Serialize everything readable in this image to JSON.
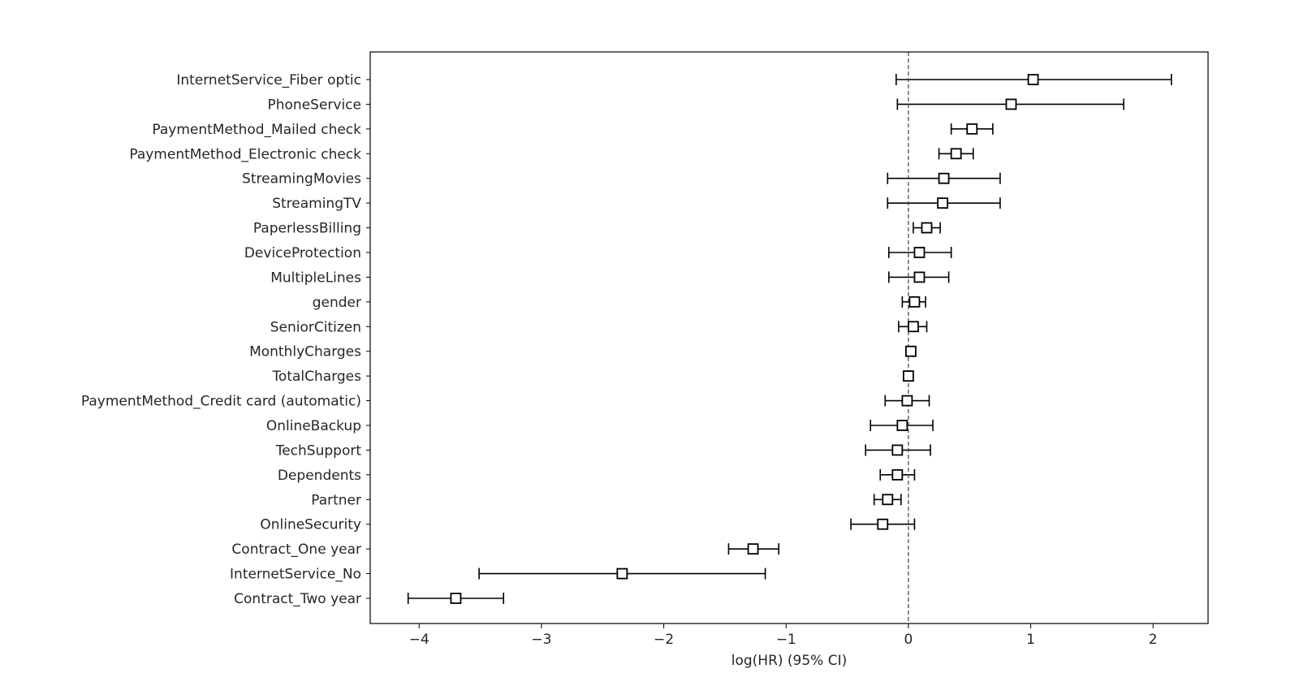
{
  "chart_data": {
    "type": "scatter",
    "title": "",
    "xlabel": "log(HR) (95% CI)",
    "ylabel": "",
    "xlim": [
      -4.4,
      2.45
    ],
    "xticks": [
      -4,
      -3,
      -2,
      -1,
      0,
      1,
      2
    ],
    "xtick_labels": [
      "−4",
      "−3",
      "−2",
      "−1",
      "0",
      "1",
      "2"
    ],
    "reference_line": 0,
    "grid": false,
    "covariates": [
      {
        "label": "InternetService_Fiber optic",
        "coef": 1.02,
        "lower": -0.1,
        "upper": 2.15
      },
      {
        "label": "PhoneService",
        "coef": 0.84,
        "lower": -0.09,
        "upper": 1.76
      },
      {
        "label": "PaymentMethod_Mailed check",
        "coef": 0.52,
        "lower": 0.35,
        "upper": 0.69
      },
      {
        "label": "PaymentMethod_Electronic check",
        "coef": 0.39,
        "lower": 0.25,
        "upper": 0.53
      },
      {
        "label": "StreamingMovies",
        "coef": 0.29,
        "lower": -0.17,
        "upper": 0.75
      },
      {
        "label": "StreamingTV",
        "coef": 0.28,
        "lower": -0.17,
        "upper": 0.75
      },
      {
        "label": "PaperlessBilling",
        "coef": 0.15,
        "lower": 0.04,
        "upper": 0.26
      },
      {
        "label": "DeviceProtection",
        "coef": 0.09,
        "lower": -0.16,
        "upper": 0.35
      },
      {
        "label": "MultipleLines",
        "coef": 0.09,
        "lower": -0.16,
        "upper": 0.33
      },
      {
        "label": "gender",
        "coef": 0.05,
        "lower": -0.05,
        "upper": 0.14
      },
      {
        "label": "SeniorCitizen",
        "coef": 0.04,
        "lower": -0.08,
        "upper": 0.15
      },
      {
        "label": "MonthlyCharges",
        "coef": 0.02,
        "lower": -0.01,
        "upper": 0.04
      },
      {
        "label": "TotalCharges",
        "coef": 0.0,
        "lower": -0.01,
        "upper": 0.01
      },
      {
        "label": "PaymentMethod_Credit card (automatic)",
        "coef": -0.01,
        "lower": -0.19,
        "upper": 0.17
      },
      {
        "label": "OnlineBackup",
        "coef": -0.05,
        "lower": -0.31,
        "upper": 0.2
      },
      {
        "label": "TechSupport",
        "coef": -0.09,
        "lower": -0.35,
        "upper": 0.18
      },
      {
        "label": "Dependents",
        "coef": -0.09,
        "lower": -0.23,
        "upper": 0.05
      },
      {
        "label": "Partner",
        "coef": -0.17,
        "lower": -0.28,
        "upper": -0.06
      },
      {
        "label": "OnlineSecurity",
        "coef": -0.21,
        "lower": -0.47,
        "upper": 0.05
      },
      {
        "label": "Contract_One year",
        "coef": -1.27,
        "lower": -1.47,
        "upper": -1.06
      },
      {
        "label": "InternetService_No",
        "coef": -2.34,
        "lower": -3.51,
        "upper": -1.17
      },
      {
        "label": "Contract_Two year",
        "coef": -3.7,
        "lower": -4.09,
        "upper": -3.31
      }
    ]
  },
  "colors": {
    "axis": "#000000",
    "marker_fill": "#ffffff",
    "marker_edge": "#000000",
    "errorbar": "#000000",
    "reference_line": "#444444",
    "text": "#262626"
  }
}
